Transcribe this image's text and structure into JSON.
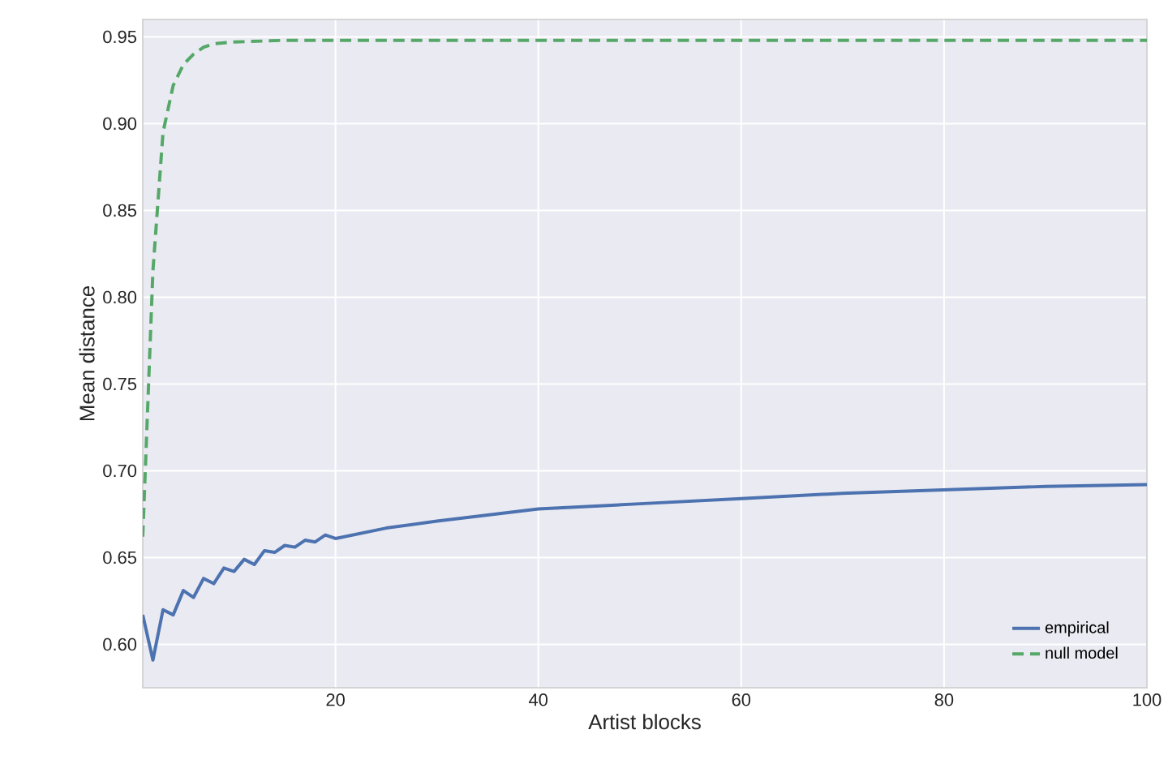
{
  "chart_data": {
    "type": "line",
    "xlabel": "Artist blocks",
    "ylabel": "Mean distance",
    "xlim": [
      1,
      100
    ],
    "ylim": [
      0.575,
      0.96
    ],
    "xticks": [
      20,
      40,
      60,
      80,
      100
    ],
    "yticks": [
      {
        "value": 0.6,
        "label": "0.60"
      },
      {
        "value": 0.65,
        "label": "0.65"
      },
      {
        "value": 0.7,
        "label": "0.70"
      },
      {
        "value": 0.75,
        "label": "0.75"
      },
      {
        "value": 0.8,
        "label": "0.80"
      },
      {
        "value": 0.85,
        "label": "0.85"
      },
      {
        "value": 0.9,
        "label": "0.90"
      },
      {
        "value": 0.95,
        "label": "0.95"
      }
    ],
    "grid": true,
    "legend": "bottom right",
    "series": [
      {
        "name": "empirical",
        "color": "#4c72b0",
        "line_style": "solid",
        "x": [
          1,
          2,
          3,
          4,
          5,
          6,
          7,
          8,
          9,
          10,
          11,
          12,
          13,
          14,
          15,
          16,
          17,
          18,
          19,
          20,
          25,
          30,
          40,
          50,
          60,
          70,
          80,
          90,
          100
        ],
        "values": [
          0.617,
          0.591,
          0.62,
          0.617,
          0.631,
          0.627,
          0.638,
          0.635,
          0.644,
          0.642,
          0.649,
          0.646,
          0.654,
          0.653,
          0.657,
          0.656,
          0.66,
          0.659,
          0.663,
          0.661,
          0.667,
          0.671,
          0.678,
          0.681,
          0.684,
          0.687,
          0.689,
          0.691,
          0.692
        ]
      },
      {
        "name": "null model",
        "color": "#55a868",
        "line_style": "dashed",
        "x": [
          1,
          2,
          3,
          4,
          5,
          6,
          7,
          8,
          10,
          15,
          100
        ],
        "values": [
          0.662,
          0.815,
          0.895,
          0.922,
          0.934,
          0.94,
          0.944,
          0.946,
          0.947,
          0.948,
          0.948
        ]
      }
    ]
  }
}
